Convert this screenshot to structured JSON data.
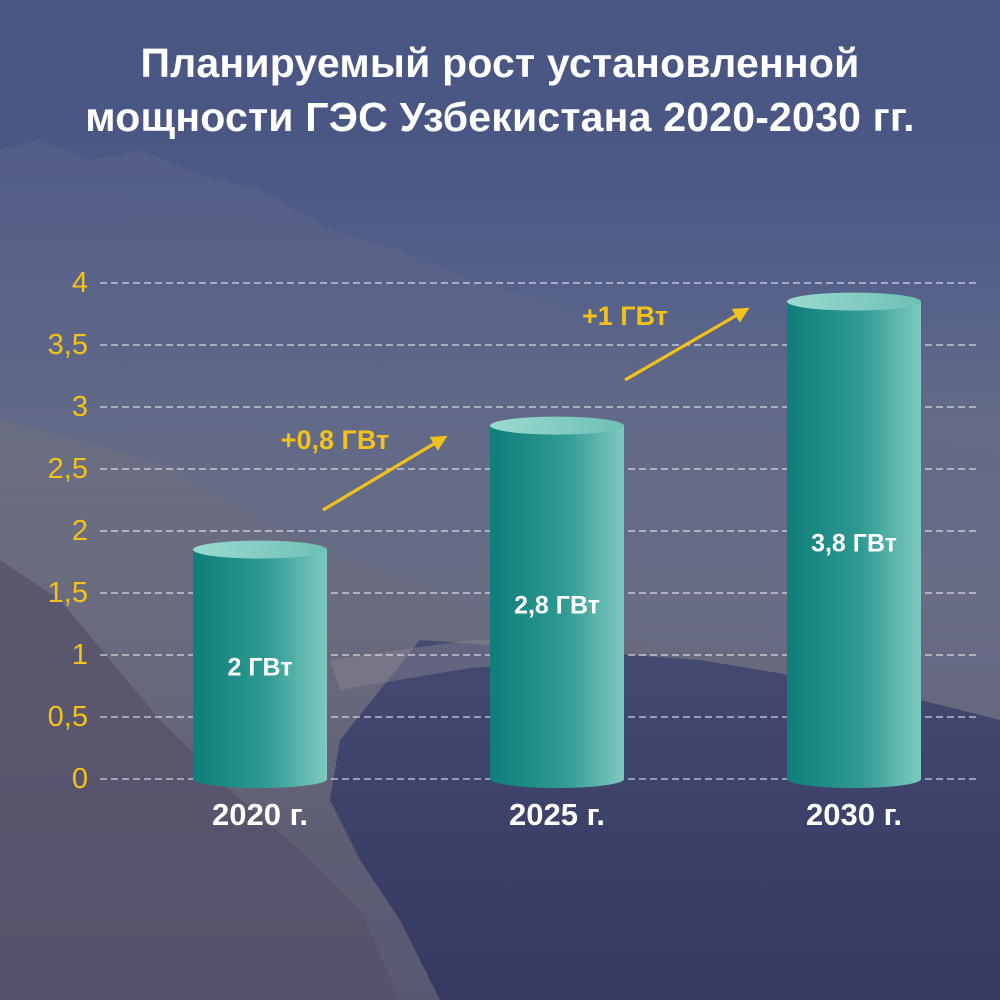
{
  "title": {
    "line1": "Планируемый рост установленной",
    "line2": "мощности ГЭС Узбекистана 2020-2030 гг."
  },
  "colors": {
    "tick_label": "#f2c21a",
    "annotation": "#f2c21a",
    "arrow": "#f2c21a",
    "bar_dark": "#0f7d7a",
    "bar_light": "#7fc9bf",
    "bar_top": "#8fd3c9",
    "gridline": "#ffffff",
    "category_label": "#ffffff",
    "bar_label": "#ffffff"
  },
  "chart_data": {
    "type": "bar",
    "categories": [
      "2020 г.",
      "2025 г.",
      "2030 г."
    ],
    "values": [
      1.85,
      2.85,
      3.85
    ],
    "value_labels": [
      "2 ГВт",
      "2,8 ГВт",
      "3,8 ГВт"
    ],
    "ylim": [
      0,
      4
    ],
    "ytick_values": [
      0,
      0.5,
      1,
      1.5,
      2,
      2.5,
      3,
      3.5,
      4
    ],
    "ytick_labels": [
      "0",
      "0,5",
      "1",
      "1,5",
      "2",
      "2,5",
      "3",
      "3,5",
      "4"
    ],
    "grid": true,
    "grid_style": "dashed",
    "annotations": [
      {
        "text": "+0,8 ГВт",
        "from": 0,
        "to": 1
      },
      {
        "text": "+1 ГВт",
        "from": 1,
        "to": 2
      }
    ]
  }
}
